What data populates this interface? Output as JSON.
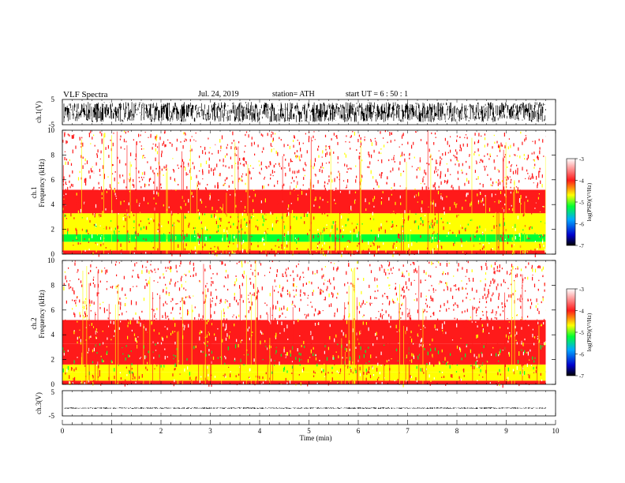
{
  "header": {
    "title": "VLF  Spectra",
    "date": "Jul.  24, 2019",
    "station": "station= ATH",
    "start": "start  UT  =   6  : 50 : 1"
  },
  "colors": {
    "spectrum_low": "#0033ff",
    "spectrum_mid": "#00ff33",
    "spectrum_yellow": "#ffff00",
    "spectrum_high": "#ff1a1a",
    "spectrum_top": "#ffffff",
    "waveform": "#000000"
  },
  "chart_data": [
    {
      "type": "line",
      "panel": "ch1-waveform",
      "ylabel": "ch.1(V)",
      "yticks": [
        "5",
        "-5"
      ],
      "ylim": [
        -5,
        5
      ],
      "xlim": [
        0,
        10
      ],
      "data_end_min": 9.8,
      "amplitude_range": [
        -4,
        4
      ]
    },
    {
      "type": "heatmap",
      "panel": "ch1-spectrogram",
      "ylabel_line1": "ch.1",
      "ylabel_line2": "Frequency  (kHz)",
      "yticks": [
        "0",
        "2",
        "4",
        "6",
        "8",
        "10"
      ],
      "ylim": [
        0,
        10
      ],
      "xlim": [
        0,
        10
      ],
      "data_end_min": 9.8,
      "colorbar_label": "log(PSD)(V²/Hz)",
      "colorbar_ticks": [
        "-3",
        "-4",
        "-5",
        "-6",
        "-7"
      ],
      "colorbar_range": [
        -7,
        -3
      ],
      "bands": [
        {
          "from_khz": 0,
          "to_khz": 0.3,
          "log_psd": -4.0
        },
        {
          "from_khz": 0.3,
          "to_khz": 1.0,
          "log_psd": -4.4
        },
        {
          "from_khz": 1.0,
          "to_khz": 1.6,
          "log_psd": -4.9
        },
        {
          "from_khz": 1.6,
          "to_khz": 3.3,
          "log_psd": -4.3
        },
        {
          "from_khz": 3.3,
          "to_khz": 5.2,
          "log_psd": -3.8
        },
        {
          "from_khz": 5.2,
          "to_khz": 10,
          "log_psd": -3.4
        }
      ]
    },
    {
      "type": "heatmap",
      "panel": "ch2-spectrogram",
      "ylabel_line1": "ch.2",
      "ylabel_line2": "Frequency  (kHz)",
      "yticks": [
        "0",
        "2",
        "4",
        "6",
        "8",
        "10"
      ],
      "ylim": [
        0,
        10
      ],
      "xlim": [
        0,
        10
      ],
      "data_end_min": 9.8,
      "colorbar_label": "log(PSD)(V²/Hz)",
      "colorbar_ticks": [
        "-3",
        "-4",
        "-5",
        "-6",
        "-7"
      ],
      "colorbar_range": [
        -7,
        -3
      ],
      "bands": [
        {
          "from_khz": 0,
          "to_khz": 0.3,
          "log_psd": -4.0
        },
        {
          "from_khz": 0.3,
          "to_khz": 1.0,
          "log_psd": -4.3
        },
        {
          "from_khz": 1.0,
          "to_khz": 1.6,
          "log_psd": -4.5
        },
        {
          "from_khz": 1.6,
          "to_khz": 3.3,
          "log_psd": -4.2
        },
        {
          "from_khz": 3.3,
          "to_khz": 5.2,
          "log_psd": -3.8
        },
        {
          "from_khz": 5.2,
          "to_khz": 10,
          "log_psd": -3.4
        }
      ]
    },
    {
      "type": "line",
      "panel": "ch3-waveform",
      "ylabel": "ch.3(V)",
      "yticks": [
        "5",
        "-5"
      ],
      "ylim": [
        -5,
        5
      ],
      "xlim": [
        0,
        10
      ],
      "data_end_min": 9.8,
      "amplitude_range": [
        -2.2,
        -1.6
      ],
      "xlabel": "Time  (min)",
      "xticks": [
        "0",
        "1",
        "2",
        "3",
        "4",
        "5",
        "6",
        "7",
        "8",
        "9",
        "10"
      ]
    }
  ]
}
